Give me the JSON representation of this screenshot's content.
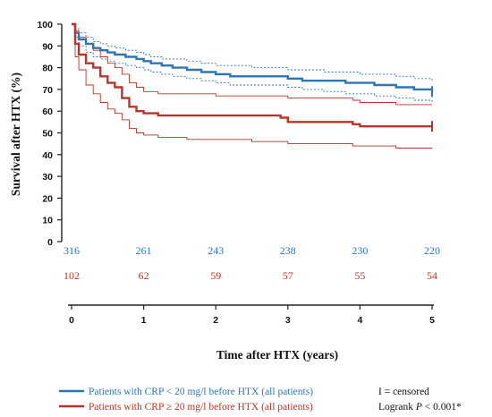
{
  "chart_data": {
    "type": "line",
    "subtype": "kaplan-meier",
    "ylabel": "Survival after HTX (%)",
    "xlabel": "Time after HTX (years)",
    "ylim": [
      0,
      100
    ],
    "xlim": [
      0,
      5
    ],
    "y_ticks": [
      "0",
      "10",
      "20",
      "30",
      "40",
      "50",
      "60",
      "70",
      "80",
      "90",
      "100"
    ],
    "x_ticks": [
      "0",
      "1",
      "2",
      "3",
      "4",
      "5"
    ],
    "colors": {
      "low": "#2e75b6",
      "high": "#b7352b"
    },
    "series": [
      {
        "name": "Patients with CRP < 20 mg/l before HTX (all patients)",
        "color": "#2e75b6",
        "x": [
          0,
          0.05,
          0.1,
          0.2,
          0.3,
          0.4,
          0.5,
          0.6,
          0.75,
          0.9,
          1.0,
          1.1,
          1.25,
          1.4,
          1.6,
          1.8,
          2.0,
          2.2,
          2.5,
          2.8,
          3.0,
          3.2,
          3.5,
          3.8,
          4.0,
          4.2,
          4.5,
          4.75,
          5.0
        ],
        "y": [
          100,
          96,
          93,
          91,
          89,
          88,
          87,
          86,
          85,
          84,
          83,
          82,
          81,
          80,
          79,
          78,
          77,
          76,
          76,
          76,
          75,
          74,
          74,
          73,
          73,
          72,
          71,
          70,
          69
        ],
        "ci_upper": [
          100,
          98,
          96,
          94,
          92,
          91,
          90,
          89,
          88,
          87,
          86,
          85,
          84,
          84,
          83,
          82,
          81,
          81,
          80,
          80,
          79,
          79,
          78,
          78,
          77,
          77,
          76,
          75,
          74
        ],
        "ci_lower": [
          100,
          94,
          90,
          87,
          85,
          84,
          83,
          82,
          81,
          80,
          79,
          78,
          77,
          76,
          75,
          74,
          73,
          72,
          72,
          72,
          71,
          70,
          69,
          68,
          68,
          67,
          66,
          65,
          64
        ]
      },
      {
        "name": "Patients with CRP ≥ 20 mg/l before HTX (all patients)",
        "color": "#b7352b",
        "x": [
          0,
          0.05,
          0.1,
          0.2,
          0.3,
          0.4,
          0.5,
          0.6,
          0.7,
          0.8,
          0.9,
          1.0,
          1.2,
          1.4,
          1.6,
          2.0,
          2.5,
          2.9,
          3.0,
          3.5,
          3.9,
          4.0,
          4.5,
          5.0
        ],
        "y": [
          100,
          91,
          86,
          82,
          80,
          76,
          73,
          71,
          66,
          62,
          60,
          59,
          58,
          58,
          58,
          58,
          58,
          57,
          55,
          55,
          54,
          53,
          53,
          53
        ],
        "ci_upper": [
          100,
          97,
          94,
          91,
          88,
          85,
          82,
          80,
          77,
          73,
          71,
          69,
          68,
          68,
          68,
          67,
          67,
          67,
          66,
          66,
          65,
          64,
          63,
          63
        ],
        "ci_lower": [
          100,
          85,
          79,
          72,
          68,
          64,
          61,
          59,
          56,
          52,
          50,
          49,
          48,
          48,
          47,
          47,
          46,
          46,
          45,
          45,
          44,
          44,
          43,
          43
        ]
      }
    ],
    "numbers_at_risk": [
      {
        "series": "Patients with CRP < 20 mg/l before HTX (all patients)",
        "values": [
          "316",
          "261",
          "243",
          "238",
          "230",
          "220"
        ]
      },
      {
        "series": "Patients with CRP ≥ 20 mg/l before HTX (all patients)",
        "values": [
          "102",
          "62",
          "59",
          "57",
          "55",
          "54"
        ]
      }
    ],
    "censor_note": "I = censored",
    "logrank_prefix": "Logrank ",
    "logrank_p": "P",
    "logrank_suffix": " < 0.001*"
  }
}
